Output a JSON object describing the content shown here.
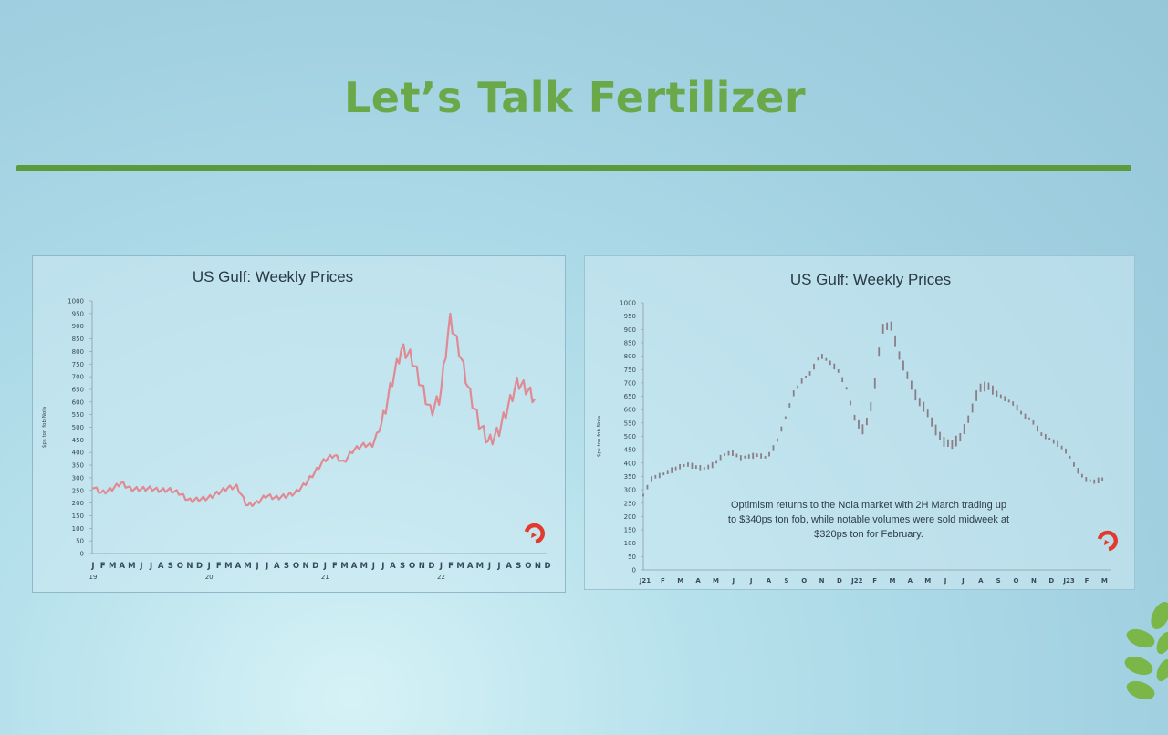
{
  "slide": {
    "title": "Let’s Talk Fertilizer"
  },
  "colors": {
    "title_green": "#6aa84a",
    "divider_green": "#5d9a3c",
    "left_series": "#e08a94",
    "right_series": "#8a7d86",
    "logo_red": "#e23a2c"
  },
  "icons": [
    "argus-logo-icon",
    "wheat-leaf-icon"
  ],
  "chart_data": [
    {
      "type": "line",
      "title": "US Gulf: Weekly Prices",
      "ylabel": "$ps ton fob Nola",
      "ylim": [
        0,
        1000
      ],
      "yticks": [
        "0",
        "50",
        "100",
        "150",
        "200",
        "250",
        "300",
        "350",
        "400",
        "450",
        "500",
        "550",
        "600",
        "650",
        "700",
        "750",
        "800",
        "850",
        "900",
        "950",
        "1000"
      ],
      "xtick_labels": [
        "J",
        "F",
        "M",
        "A",
        "M",
        "J",
        "J",
        "A",
        "S",
        "O",
        "N",
        "D",
        "J",
        "F",
        "M",
        "A",
        "M",
        "J",
        "J",
        "A",
        "S",
        "O",
        "N",
        "D",
        "J",
        "F",
        "M",
        "A",
        "M",
        "J",
        "J",
        "A",
        "S",
        "O",
        "N",
        "D",
        "J",
        "F",
        "M",
        "A",
        "M",
        "J",
        "J",
        "A",
        "S",
        "O",
        "N",
        "D"
      ],
      "year_labels": [
        "19",
        "20",
        "21",
        "22"
      ],
      "x_months_from_jan_2019": [
        0,
        1,
        2,
        3,
        4,
        5,
        6,
        7,
        8,
        9,
        10,
        11,
        12,
        13,
        14,
        15,
        16,
        17,
        18,
        19,
        20,
        21,
        22,
        23,
        24,
        25,
        26,
        27,
        28,
        29,
        30,
        31,
        32,
        33,
        34,
        35,
        36,
        37,
        38,
        39,
        40,
        41,
        42,
        43,
        44,
        45,
        45.8
      ],
      "values": [
        265,
        240,
        255,
        280,
        255,
        255,
        258,
        250,
        252,
        240,
        210,
        215,
        220,
        240,
        260,
        265,
        190,
        200,
        230,
        220,
        228,
        240,
        275,
        320,
        370,
        390,
        360,
        410,
        430,
        430,
        520,
        680,
        810,
        780,
        670,
        560,
        620,
        930,
        800,
        640,
        520,
        440,
        480,
        580,
        680,
        650,
        610
      ]
    },
    {
      "type": "line",
      "title": "US Gulf: Weekly Prices",
      "ylabel": "$ps ton fob Nola",
      "ylim": [
        0,
        1000
      ],
      "yticks": [
        "0",
        "50",
        "100",
        "150",
        "200",
        "250",
        "300",
        "350",
        "400",
        "450",
        "500",
        "550",
        "600",
        "650",
        "700",
        "750",
        "800",
        "850",
        "900",
        "950",
        "1000"
      ],
      "xtick_labels": [
        "J21",
        "F",
        "M",
        "A",
        "M",
        "J",
        "J",
        "A",
        "S",
        "O",
        "N",
        "D",
        "J22",
        "F",
        "M",
        "A",
        "M",
        "J",
        "J",
        "A",
        "S",
        "O",
        "N",
        "D",
        "J23",
        "F",
        "M"
      ],
      "x_months_from_jan_2021": [
        0,
        0.5,
        1,
        1.5,
        2,
        2.5,
        3,
        3.5,
        4,
        4.5,
        5,
        5.5,
        6,
        6.5,
        7,
        7.5,
        8,
        8.5,
        9,
        9.5,
        10,
        10.5,
        11,
        11.5,
        12,
        12.5,
        13,
        13.5,
        14,
        14.5,
        15,
        15.5,
        16,
        16.5,
        17,
        17.5,
        18,
        18.5,
        19,
        19.5,
        20,
        20.5,
        21,
        21.5,
        22,
        22.5,
        23,
        23.5,
        24,
        24.5,
        25,
        25.5,
        26
      ],
      "values": [
        280,
        345,
        355,
        370,
        385,
        395,
        385,
        380,
        395,
        430,
        440,
        420,
        425,
        430,
        420,
        470,
        560,
        660,
        710,
        740,
        805,
        780,
        750,
        680,
        560,
        520,
        640,
        900,
        920,
        800,
        720,
        640,
        600,
        530,
        480,
        470,
        500,
        580,
        680,
        690,
        660,
        640,
        620,
        580,
        560,
        510,
        490,
        470,
        440,
        380,
        340,
        330,
        340
      ],
      "annotation": "Optimism returns to the Nola market with 2H March trading up to $340ps ton fob, while notable volumes were sold midweek at $320ps ton for February."
    }
  ]
}
